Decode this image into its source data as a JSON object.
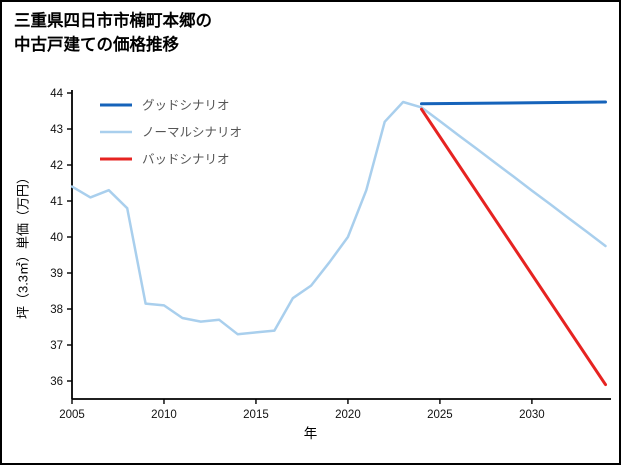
{
  "title": {
    "line1": "三重県四日市市楠町本郷の",
    "line2": "中古戸建ての価格推移"
  },
  "chart_data": {
    "type": "line",
    "title": "三重県四日市市楠町本郷の中古戸建ての価格推移",
    "xlabel": "年",
    "ylabel": "坪（3.3㎡）単価（万円）",
    "xlim": [
      2005,
      2034.3
    ],
    "ylim": [
      35.5,
      44
    ],
    "xticks": [
      2005,
      2010,
      2015,
      2020,
      2025,
      2030
    ],
    "yticks": [
      36,
      37,
      38,
      39,
      40,
      41,
      42,
      43,
      44
    ],
    "grid": false,
    "legend_position": "upper-left",
    "axis_color": "#000000",
    "legend_text_color": "#555555",
    "series": [
      {
        "name": "グッドシナリオ",
        "color": "#1663ba",
        "width": 3,
        "x": [
          2024,
          2034
        ],
        "y": [
          43.7,
          43.75
        ]
      },
      {
        "name": "ノーマルシナリオ",
        "color": "#a9cfed",
        "width": 2.5,
        "x": [
          2005,
          2006,
          2007,
          2008,
          2009,
          2010,
          2011,
          2012,
          2013,
          2014,
          2015,
          2016,
          2017,
          2018,
          2019,
          2020,
          2021,
          2022,
          2023,
          2024,
          2025,
          2026,
          2027,
          2028,
          2029,
          2030,
          2031,
          2032,
          2033,
          2034
        ],
        "y": [
          41.4,
          41.1,
          41.3,
          40.8,
          38.15,
          38.1,
          37.75,
          37.65,
          37.7,
          37.3,
          37.35,
          37.4,
          38.3,
          38.65,
          39.3,
          40.0,
          41.3,
          43.2,
          43.75,
          43.6,
          43.22,
          42.83,
          42.45,
          42.06,
          41.68,
          41.29,
          40.91,
          40.52,
          40.14,
          39.75
        ]
      },
      {
        "name": "バッドシナリオ",
        "color": "#e62321",
        "width": 3,
        "x": [
          2024,
          2034
        ],
        "y": [
          43.55,
          35.9
        ]
      }
    ]
  }
}
